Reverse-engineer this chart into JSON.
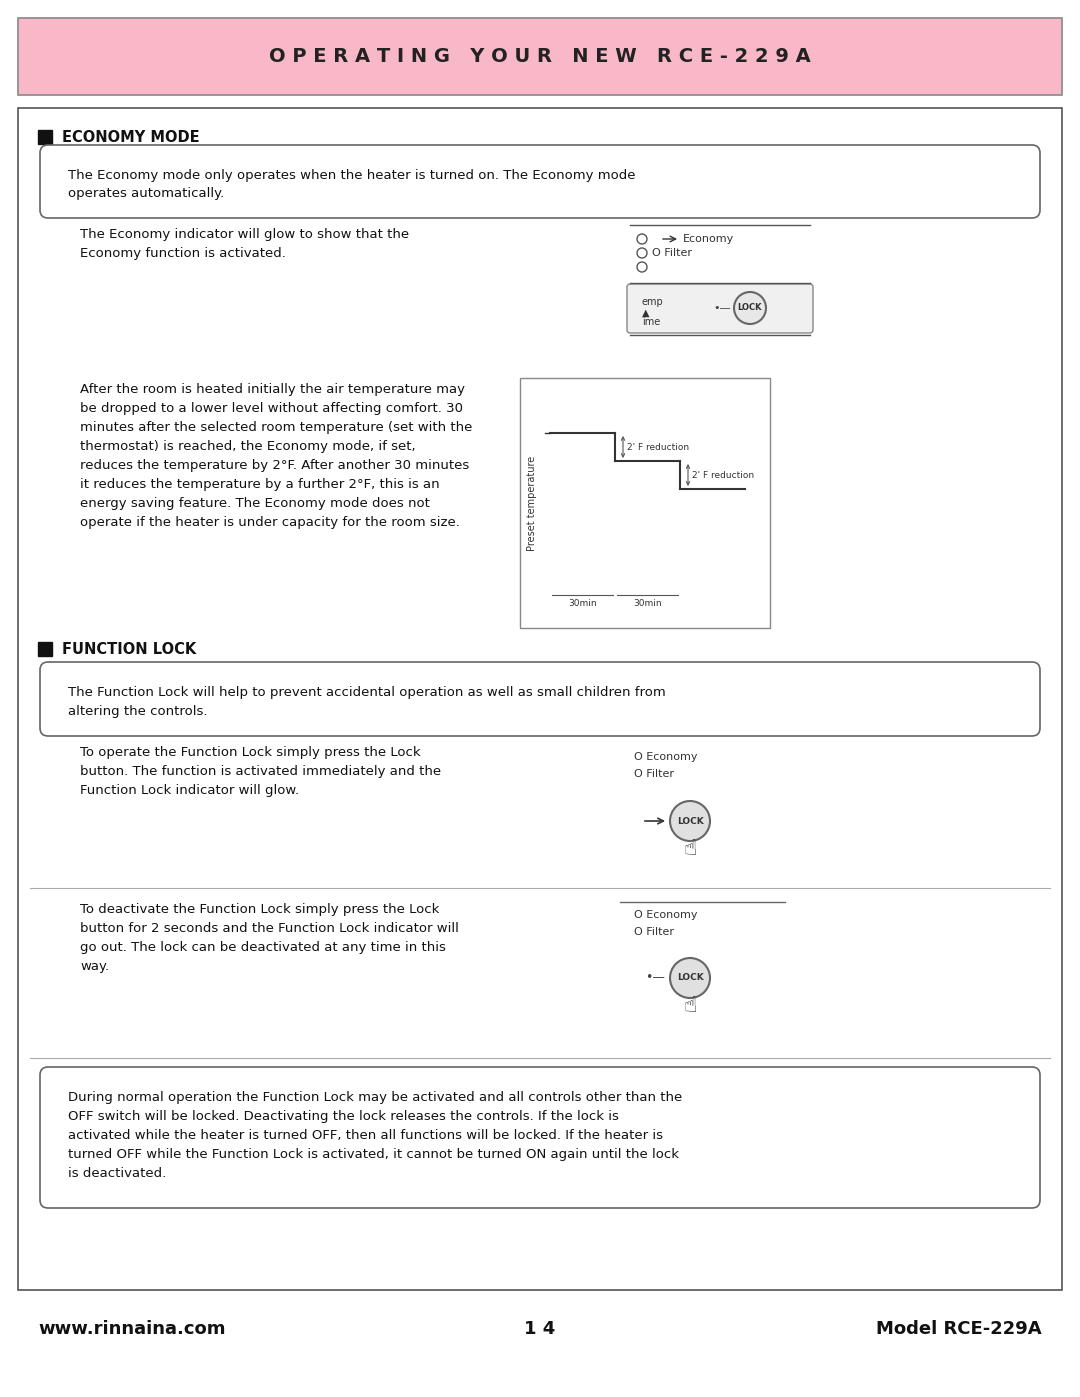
{
  "page_bg": "#ffffff",
  "header_bg": "#f9b8c8",
  "header_text": "O P E R A T I N G   Y O U R   N E W   R C E - 2 2 9 A",
  "footer_left": "www.rinnaina.com",
  "footer_center": "1 4",
  "footer_right": "Model RCE-229A",
  "economy_mode_title": "ECONOMY MODE",
  "economy_intro_box": "The Economy mode only operates when the heater is turned on. The Economy mode\noperates automatically.",
  "economy_para1": "The Economy indicator will glow to show that the\nEconomy function is activated.",
  "economy_para2": "After the room is heated initially the air temperature may\nbe dropped to a lower level without affecting comfort. 30\nminutes after the selected room temperature (set with the\nthermostat) is reached, the Economy mode, if set,\nreduces the temperature by 2°F. After another 30 minutes\nit reduces the temperature by a further 2°F, this is an\nenergy saving feature. The Economy mode does not\noperate if the heater is under capacity for the room size.",
  "function_lock_title": "FUNCTION LOCK",
  "function_lock_intro": "The Function Lock will help to prevent accidental operation as well as small children from\naltering the controls.",
  "function_lock_para1": "To operate the Function Lock simply press the Lock\nbutton. The function is activated immediately and the\nFunction Lock indicator will glow.",
  "function_lock_para2": "To deactivate the Function Lock simply press the Lock\nbutton for 2 seconds and the Function Lock indicator will\ngo out. The lock can be deactivated at any time in this\nway.",
  "function_lock_note": "During normal operation the Function Lock may be activated and all controls other than the\nOFF switch will be locked. Deactivating the lock releases the controls. If the lock is\nactivated while the heater is turned OFF, then all functions will be locked. If the heater is\nturned OFF while the Function Lock is activated, it cannot be turned ON again until the lock\nis deactivated."
}
